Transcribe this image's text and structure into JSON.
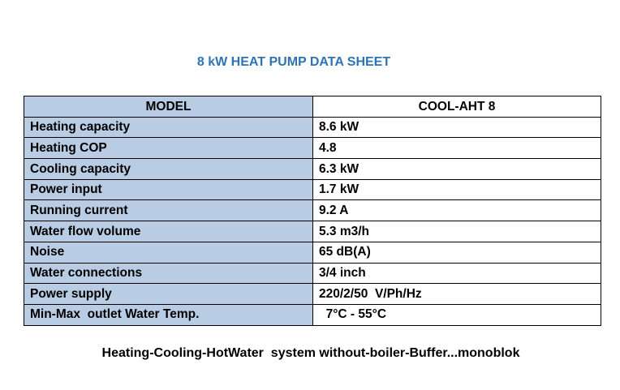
{
  "title": "8 kW HEAT PUMP DATA SHEET",
  "table": {
    "header": [
      "MODEL",
      "COOL-AHT 8"
    ],
    "rows": [
      [
        "Heating capacity",
        "8.6 kW"
      ],
      [
        "Heating COP",
        "4.8"
      ],
      [
        "Cooling capacity",
        "6.3 kW"
      ],
      [
        "Power input",
        "1.7 kW"
      ],
      [
        "Running current",
        "9.2 A"
      ],
      [
        "Water flow volume",
        "5.3 m3/h"
      ],
      [
        "Noise",
        "65 dB(A)"
      ],
      [
        "Water connections",
        "3/4 inch"
      ],
      [
        "Power supply",
        "220/2/50  V/Ph/Hz"
      ],
      [
        "Min-Max  outlet Water Temp.",
        "  7°C - 55°C"
      ]
    ]
  },
  "footer": "Heating-Cooling-HotWater  system without-boiler-Buffer...monoblok"
}
